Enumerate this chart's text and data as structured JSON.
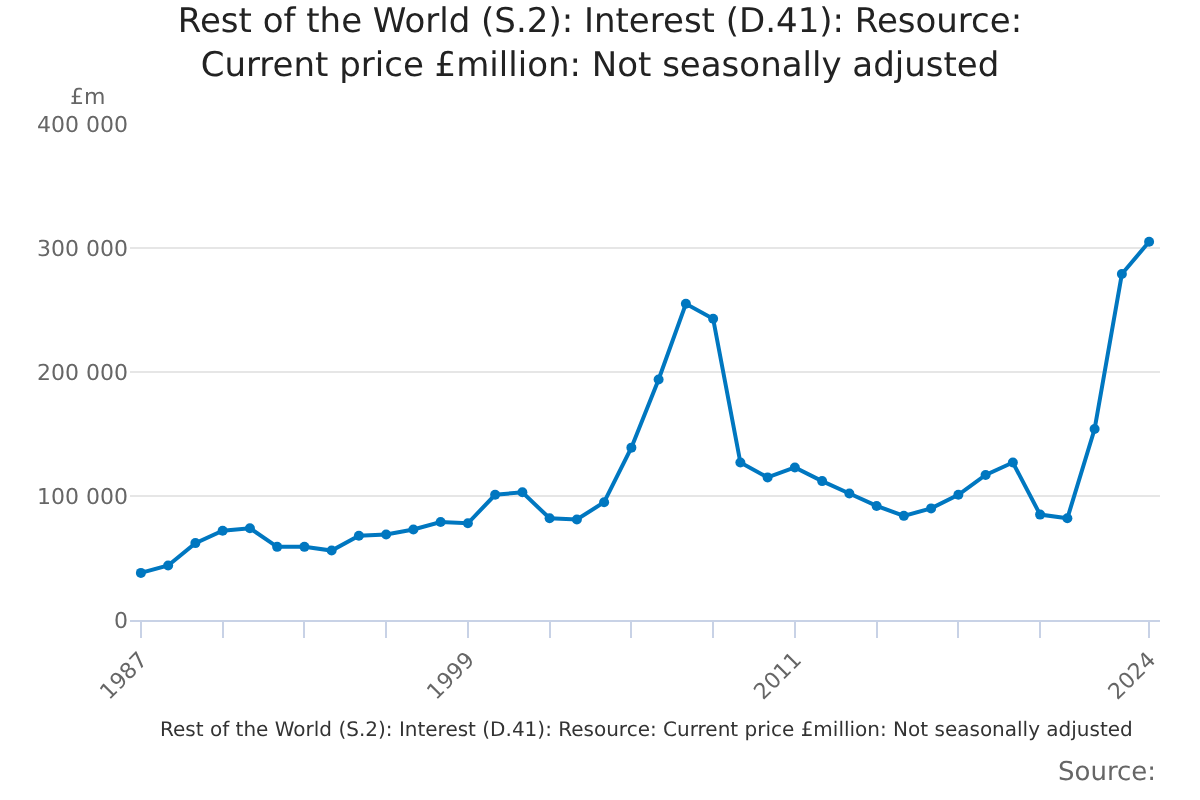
{
  "chart_data": {
    "type": "line",
    "title": "Rest of the World (S.2): Interest (D.41): Resource: Current price £million: Not seasonally adjusted",
    "ylabel": "£m",
    "annotations": [
      "Rest of the World (S.2): Interest (D.41): Resource: Current price £million: Not seasonally adjusted",
      "Source:"
    ],
    "x": [
      1987,
      1988,
      1989,
      1990,
      1991,
      1992,
      1993,
      1994,
      1995,
      1996,
      1997,
      1998,
      1999,
      2000,
      2001,
      2002,
      2003,
      2004,
      2005,
      2006,
      2007,
      2008,
      2009,
      2010,
      2011,
      2012,
      2013,
      2014,
      2015,
      2016,
      2017,
      2018,
      2019,
      2020,
      2021,
      2022,
      2023,
      2024
    ],
    "series": [
      {
        "color": "#0077c0",
        "values": [
          38000,
          44000,
          62000,
          72000,
          74000,
          59000,
          59000,
          56000,
          68000,
          69000,
          73000,
          79000,
          78000,
          101000,
          103000,
          82000,
          81000,
          95000,
          139000,
          194000,
          255000,
          243000,
          127000,
          115000,
          123000,
          112000,
          102000,
          92000,
          84000,
          90000,
          101000,
          117000,
          127000,
          85000,
          82000,
          154000,
          279000,
          305000
        ]
      }
    ],
    "xlim": [
      1986.6,
      2024.4
    ],
    "xticks": [
      1987,
      {
        "value": 1990,
        "label": null
      },
      {
        "value": 1993,
        "label": null
      },
      {
        "value": 1996,
        "label": null
      },
      1999,
      {
        "value": 2002,
        "label": null
      },
      {
        "value": 2005,
        "label": null
      },
      {
        "value": 2008,
        "label": null
      },
      2011,
      {
        "value": 2014,
        "label": null
      },
      {
        "value": 2017,
        "label": null
      },
      {
        "value": 2020,
        "label": null
      },
      2024
    ],
    "ylim": [
      0,
      400000
    ],
    "yticks": [
      {
        "value": 0,
        "label": "0"
      },
      {
        "value": 100000,
        "label": "100 000"
      },
      {
        "value": 200000,
        "label": "200 000"
      },
      {
        "value": 300000,
        "label": "300 000"
      },
      {
        "value": 400000,
        "label": "400 000"
      }
    ],
    "grid": "y",
    "marker": "circle",
    "line_style": "solid"
  }
}
